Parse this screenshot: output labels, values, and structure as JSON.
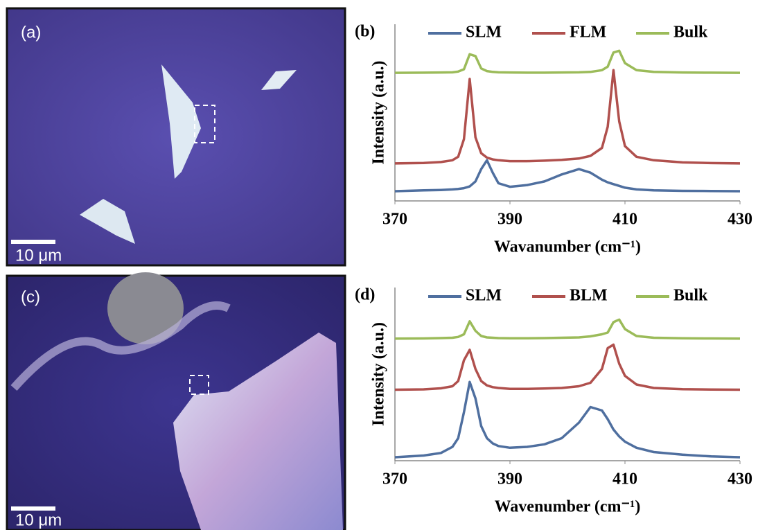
{
  "images": [
    {
      "label": "(a)",
      "scale_bar": "10 μm"
    },
    {
      "label": "(c)",
      "scale_bar": "10 μm"
    }
  ],
  "chart_data": [
    {
      "type": "line",
      "panel_label": "(b)",
      "x_label": "Wavanumber (cm⁻¹)",
      "y_label": "Intensity (a.u.)",
      "xlim": [
        370,
        430
      ],
      "xticks": [
        370,
        390,
        410,
        430
      ],
      "ylim": [
        0,
        10
      ],
      "x": [
        370,
        375,
        378,
        380,
        381,
        382,
        383,
        384,
        385,
        386,
        387,
        388,
        390,
        393,
        396,
        399,
        402,
        404,
        406,
        407,
        408,
        409,
        410,
        412,
        415,
        420,
        425,
        430
      ],
      "series": [
        {
          "name": "SLM",
          "color": "#4f6f9f",
          "values": [
            0.55,
            0.6,
            0.62,
            0.65,
            0.68,
            0.72,
            0.82,
            1.1,
            1.8,
            2.3,
            1.6,
            1.0,
            0.8,
            0.9,
            1.1,
            1.5,
            1.8,
            1.6,
            1.2,
            1.05,
            0.95,
            0.85,
            0.75,
            0.65,
            0.6,
            0.57,
            0.56,
            0.55
          ]
        },
        {
          "name": "FLM",
          "color": "#b0504d",
          "values": [
            2.12,
            2.15,
            2.2,
            2.3,
            2.5,
            3.5,
            6.9,
            3.6,
            2.7,
            2.45,
            2.35,
            2.3,
            2.25,
            2.25,
            2.28,
            2.32,
            2.4,
            2.55,
            3.0,
            4.2,
            7.4,
            4.5,
            3.1,
            2.5,
            2.3,
            2.18,
            2.14,
            2.12
          ]
        },
        {
          "name": "Bulk",
          "color": "#9bbb59",
          "values": [
            7.25,
            7.26,
            7.27,
            7.28,
            7.32,
            7.45,
            8.3,
            8.2,
            7.5,
            7.35,
            7.3,
            7.28,
            7.27,
            7.26,
            7.26,
            7.27,
            7.28,
            7.3,
            7.4,
            7.6,
            8.4,
            8.5,
            7.8,
            7.4,
            7.3,
            7.27,
            7.26,
            7.25
          ]
        }
      ]
    },
    {
      "type": "line",
      "panel_label": "(d)",
      "x_label": "Wavenumber (cm⁻¹)",
      "y_label": "Intensity (a.u.)",
      "xlim": [
        370,
        430
      ],
      "xticks": [
        370,
        390,
        410,
        430
      ],
      "ylim": [
        0,
        10
      ],
      "x": [
        370,
        375,
        378,
        380,
        381,
        382,
        383,
        384,
        385,
        386,
        387,
        388,
        390,
        393,
        396,
        399,
        402,
        404,
        406,
        407,
        408,
        409,
        410,
        412,
        415,
        420,
        425,
        430
      ],
      "series": [
        {
          "name": "SLM",
          "color": "#4f6f9f",
          "values": [
            0.2,
            0.3,
            0.45,
            0.8,
            1.3,
            2.8,
            4.55,
            3.6,
            2.0,
            1.3,
            1.0,
            0.85,
            0.75,
            0.8,
            0.95,
            1.3,
            2.2,
            3.1,
            2.9,
            2.4,
            1.8,
            1.4,
            1.1,
            0.75,
            0.5,
            0.35,
            0.25,
            0.2
          ]
        },
        {
          "name": "BLM",
          "color": "#b0504d",
          "values": [
            4.1,
            4.12,
            4.18,
            4.3,
            4.6,
            5.8,
            6.4,
            5.3,
            4.6,
            4.35,
            4.25,
            4.2,
            4.15,
            4.15,
            4.17,
            4.2,
            4.3,
            4.5,
            5.3,
            6.5,
            6.7,
            5.6,
            4.9,
            4.4,
            4.2,
            4.13,
            4.11,
            4.1
          ]
        },
        {
          "name": "Bulk",
          "color": "#9bbb59",
          "values": [
            7.05,
            7.06,
            7.08,
            7.1,
            7.15,
            7.3,
            8.05,
            7.5,
            7.2,
            7.12,
            7.1,
            7.08,
            7.07,
            7.07,
            7.08,
            7.1,
            7.12,
            7.18,
            7.3,
            7.4,
            8.0,
            8.15,
            7.6,
            7.2,
            7.1,
            7.07,
            7.06,
            7.05
          ]
        }
      ]
    }
  ]
}
